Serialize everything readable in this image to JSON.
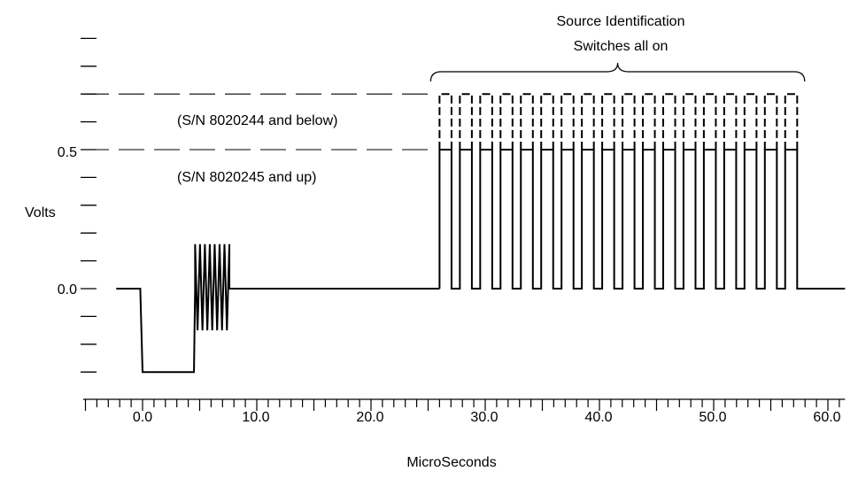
{
  "chart_data": {
    "type": "line",
    "title": "",
    "xlabel": "MicroSeconds",
    "ylabel": "Volts",
    "x_tick_labels": [
      "0.0",
      "10.0",
      "20.0",
      "30.0",
      "40.0",
      "50.0",
      "60.0"
    ],
    "y_tick_labels": [
      "0.5",
      "0.0"
    ],
    "xlim": [
      -5.2,
      61.5
    ],
    "ylim": [
      -0.3,
      0.6
    ],
    "annotations": {
      "bracket_line1": "Source Identification",
      "bracket_line2": "Switches all on",
      "upper_level_note": "(S/N 8020244 and below)",
      "lower_level_note": "(S/N 8020245 and up)"
    },
    "levels": {
      "upper": 0.7,
      "lower": 0.5
    },
    "waveform": {
      "baseline": 0.0,
      "negative_pulse": {
        "start": 0.0,
        "end": 4.5,
        "level": -0.3
      },
      "ringing": {
        "start": 4.6,
        "end": 7.6,
        "max": 0.16,
        "min": -0.15
      },
      "pulse_train": {
        "start": 26.0,
        "count": 18,
        "period": 1.78,
        "width": 1.05,
        "end": 57.5
      },
      "end_x": 61.5
    }
  }
}
